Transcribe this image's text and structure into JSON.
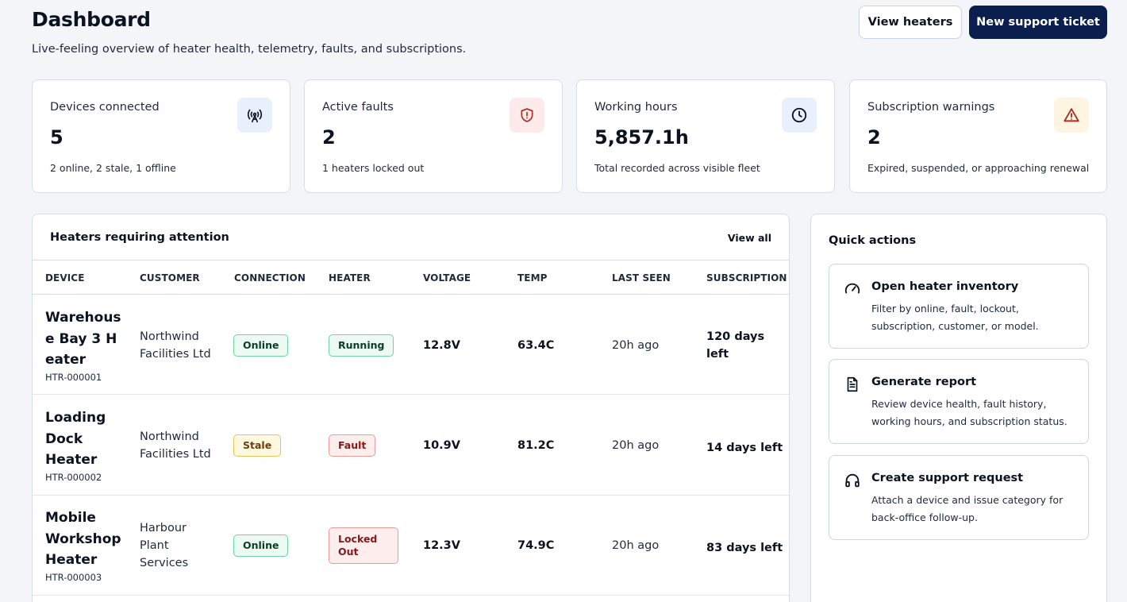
{
  "header": {
    "title": "Dashboard",
    "subtitle": "Live-feeling overview of heater health, telemetry, faults, and subscriptions.",
    "view_heaters_label": "View heaters",
    "new_ticket_label": "New support ticket"
  },
  "stats": [
    {
      "label": "Devices connected",
      "value": "5",
      "sub": "2 online, 2 stale, 1 offline",
      "icon": "antenna-icon"
    },
    {
      "label": "Active faults",
      "value": "2",
      "sub": "1 heaters locked out",
      "icon": "shield-alert-icon"
    },
    {
      "label": "Working hours",
      "value": "5,857.1h",
      "sub": "Total recorded across visible fleet",
      "icon": "clock-icon"
    },
    {
      "label": "Subscription warnings",
      "value": "2",
      "sub": "Expired, suspended, or approaching renewal",
      "icon": "warning-triangle-icon"
    }
  ],
  "attention": {
    "title": "Heaters requiring attention",
    "view_all_label": "View all",
    "columns": [
      "DEVICE",
      "CUSTOMER",
      "CONNECTION",
      "HEATER",
      "VOLTAGE",
      "TEMP",
      "LAST SEEN",
      "SUBSCRIPTION"
    ],
    "rows": [
      {
        "name": "Warehouse Bay 3 Heater",
        "id": "HTR-000001",
        "customer": "Northwind Facilities Ltd",
        "connection": "Online",
        "heater": "Running",
        "voltage": "12.8V",
        "temp": "63.4C",
        "last_seen": "20h ago",
        "subscription": "120 days left"
      },
      {
        "name": "Loading Dock Heater",
        "id": "HTR-000002",
        "customer": "Northwind Facilities Ltd",
        "connection": "Stale",
        "heater": "Fault",
        "voltage": "10.9V",
        "temp": "81.2C",
        "last_seen": "20h ago",
        "subscription": "14 days left"
      },
      {
        "name": "Mobile Workshop Heater",
        "id": "HTR-000003",
        "customer": "Harbour Plant Services",
        "connection": "Online",
        "heater": "Locked Out",
        "voltage": "12.3V",
        "temp": "74.9C",
        "last_seen": "20h ago",
        "subscription": "83 days left"
      }
    ]
  },
  "quick_actions": {
    "title": "Quick actions",
    "items": [
      {
        "title": "Open heater inventory",
        "desc": "Filter by online, fault, lockout, subscription, customer, or model.",
        "icon": "gauge-icon"
      },
      {
        "title": "Generate report",
        "desc": "Review device health, fault history, working hours, and subscription status.",
        "icon": "document-icon"
      },
      {
        "title": "Create support request",
        "desc": "Attach a device and issue category for back-office follow-up.",
        "icon": "headset-icon"
      }
    ]
  },
  "colors": {
    "primary": "#0b1f4f",
    "online": "#6fd4a3",
    "stale": "#e8c45a",
    "fault": "#ef9a9a"
  }
}
